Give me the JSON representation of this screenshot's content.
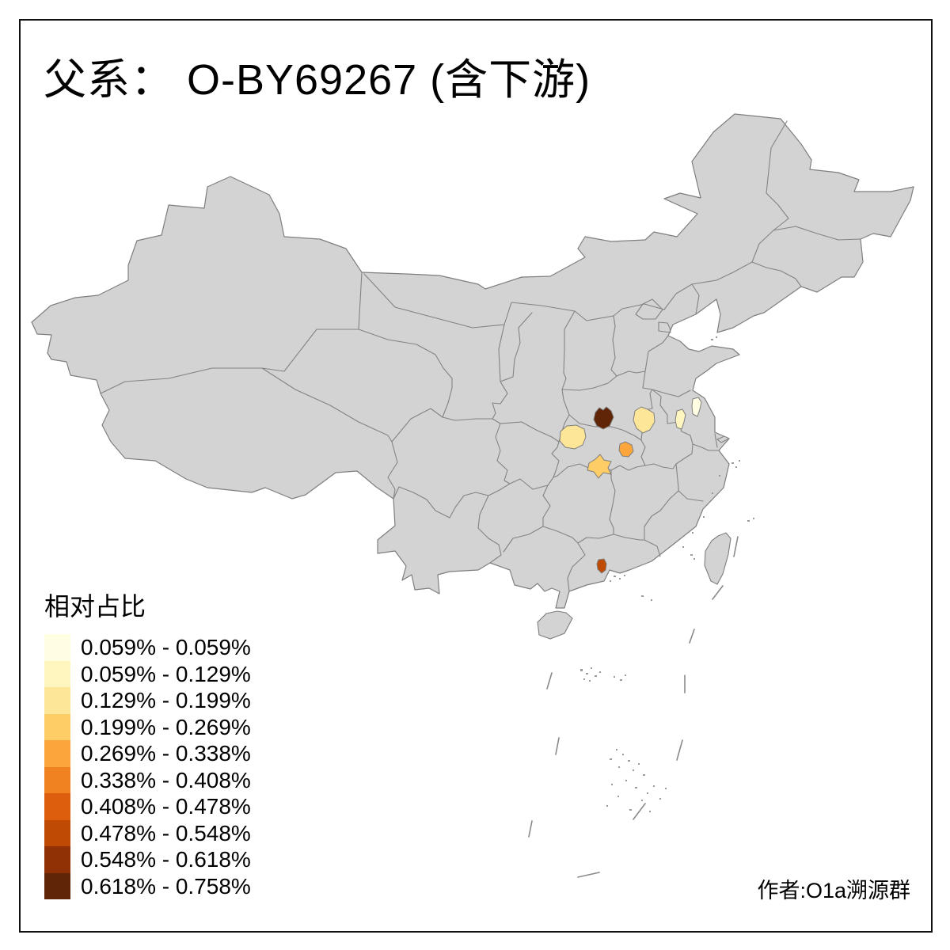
{
  "title": "父系： O-BY69267 (含下游)",
  "author": "作者:O1a溯源群",
  "legend": {
    "title": "相对占比",
    "classes": [
      {
        "color": "#FFFEE3",
        "label": "0.059% - 0.059%"
      },
      {
        "color": "#FFF5BF",
        "label": "0.059% - 0.129%"
      },
      {
        "color": "#FEE698",
        "label": "0.129% - 0.199%"
      },
      {
        "color": "#FECD65",
        "label": "0.199% - 0.269%"
      },
      {
        "color": "#FBA53B",
        "label": "0.269% - 0.338%"
      },
      {
        "color": "#F0831F",
        "label": "0.338% - 0.408%"
      },
      {
        "color": "#DD5F0D",
        "label": "0.408% - 0.478%"
      },
      {
        "color": "#BE4A04",
        "label": "0.478% - 0.548%"
      },
      {
        "color": "#8F3104",
        "label": "0.548% - 0.618%"
      },
      {
        "color": "#5F2506",
        "label": "0.618% - 0.758%"
      }
    ]
  },
  "map": {
    "land_color": "#D3D3D3",
    "sea_color": "#FFFFFF",
    "outline_color": "#7E7E7E",
    "province_border_color": "#838383",
    "regions": [
      {
        "id": "region-1",
        "class_index": 9
      },
      {
        "id": "region-2",
        "class_index": 2
      },
      {
        "id": "region-3",
        "class_index": 2
      },
      {
        "id": "region-4",
        "class_index": 1
      },
      {
        "id": "region-5",
        "class_index": 0
      },
      {
        "id": "region-6",
        "class_index": 4
      },
      {
        "id": "region-7",
        "class_index": 3
      },
      {
        "id": "region-8",
        "class_index": 7
      }
    ]
  },
  "chart_data": {
    "type": "choropleth-map",
    "title": "父系： O-BY69267 (含下游)",
    "legend_title": "相对占比",
    "unit": "%",
    "class_breaks": [
      0.059,
      0.059,
      0.129,
      0.199,
      0.269,
      0.338,
      0.408,
      0.478,
      0.548,
      0.618,
      0.758
    ],
    "colored_regions": [
      {
        "id": "region-1",
        "value_range": "0.618% - 0.758%",
        "location": "northwest Hubei area"
      },
      {
        "id": "region-2",
        "value_range": "0.129% - 0.199%",
        "location": "west of region-1"
      },
      {
        "id": "region-3",
        "value_range": "0.129% - 0.199%",
        "location": "south Henan area"
      },
      {
        "id": "region-4",
        "value_range": "0.059% - 0.129%",
        "location": "north Anhui/Jiangsu border"
      },
      {
        "id": "region-5",
        "value_range": "0.059% - 0.059%",
        "location": "north Jiangsu"
      },
      {
        "id": "region-6",
        "value_range": "0.269% - 0.338%",
        "location": "central Hubei"
      },
      {
        "id": "region-7",
        "value_range": "0.199% - 0.269%",
        "location": "southwest Hubei"
      },
      {
        "id": "region-8",
        "value_range": "0.478% - 0.548%",
        "location": "Guangdong coast"
      }
    ]
  }
}
